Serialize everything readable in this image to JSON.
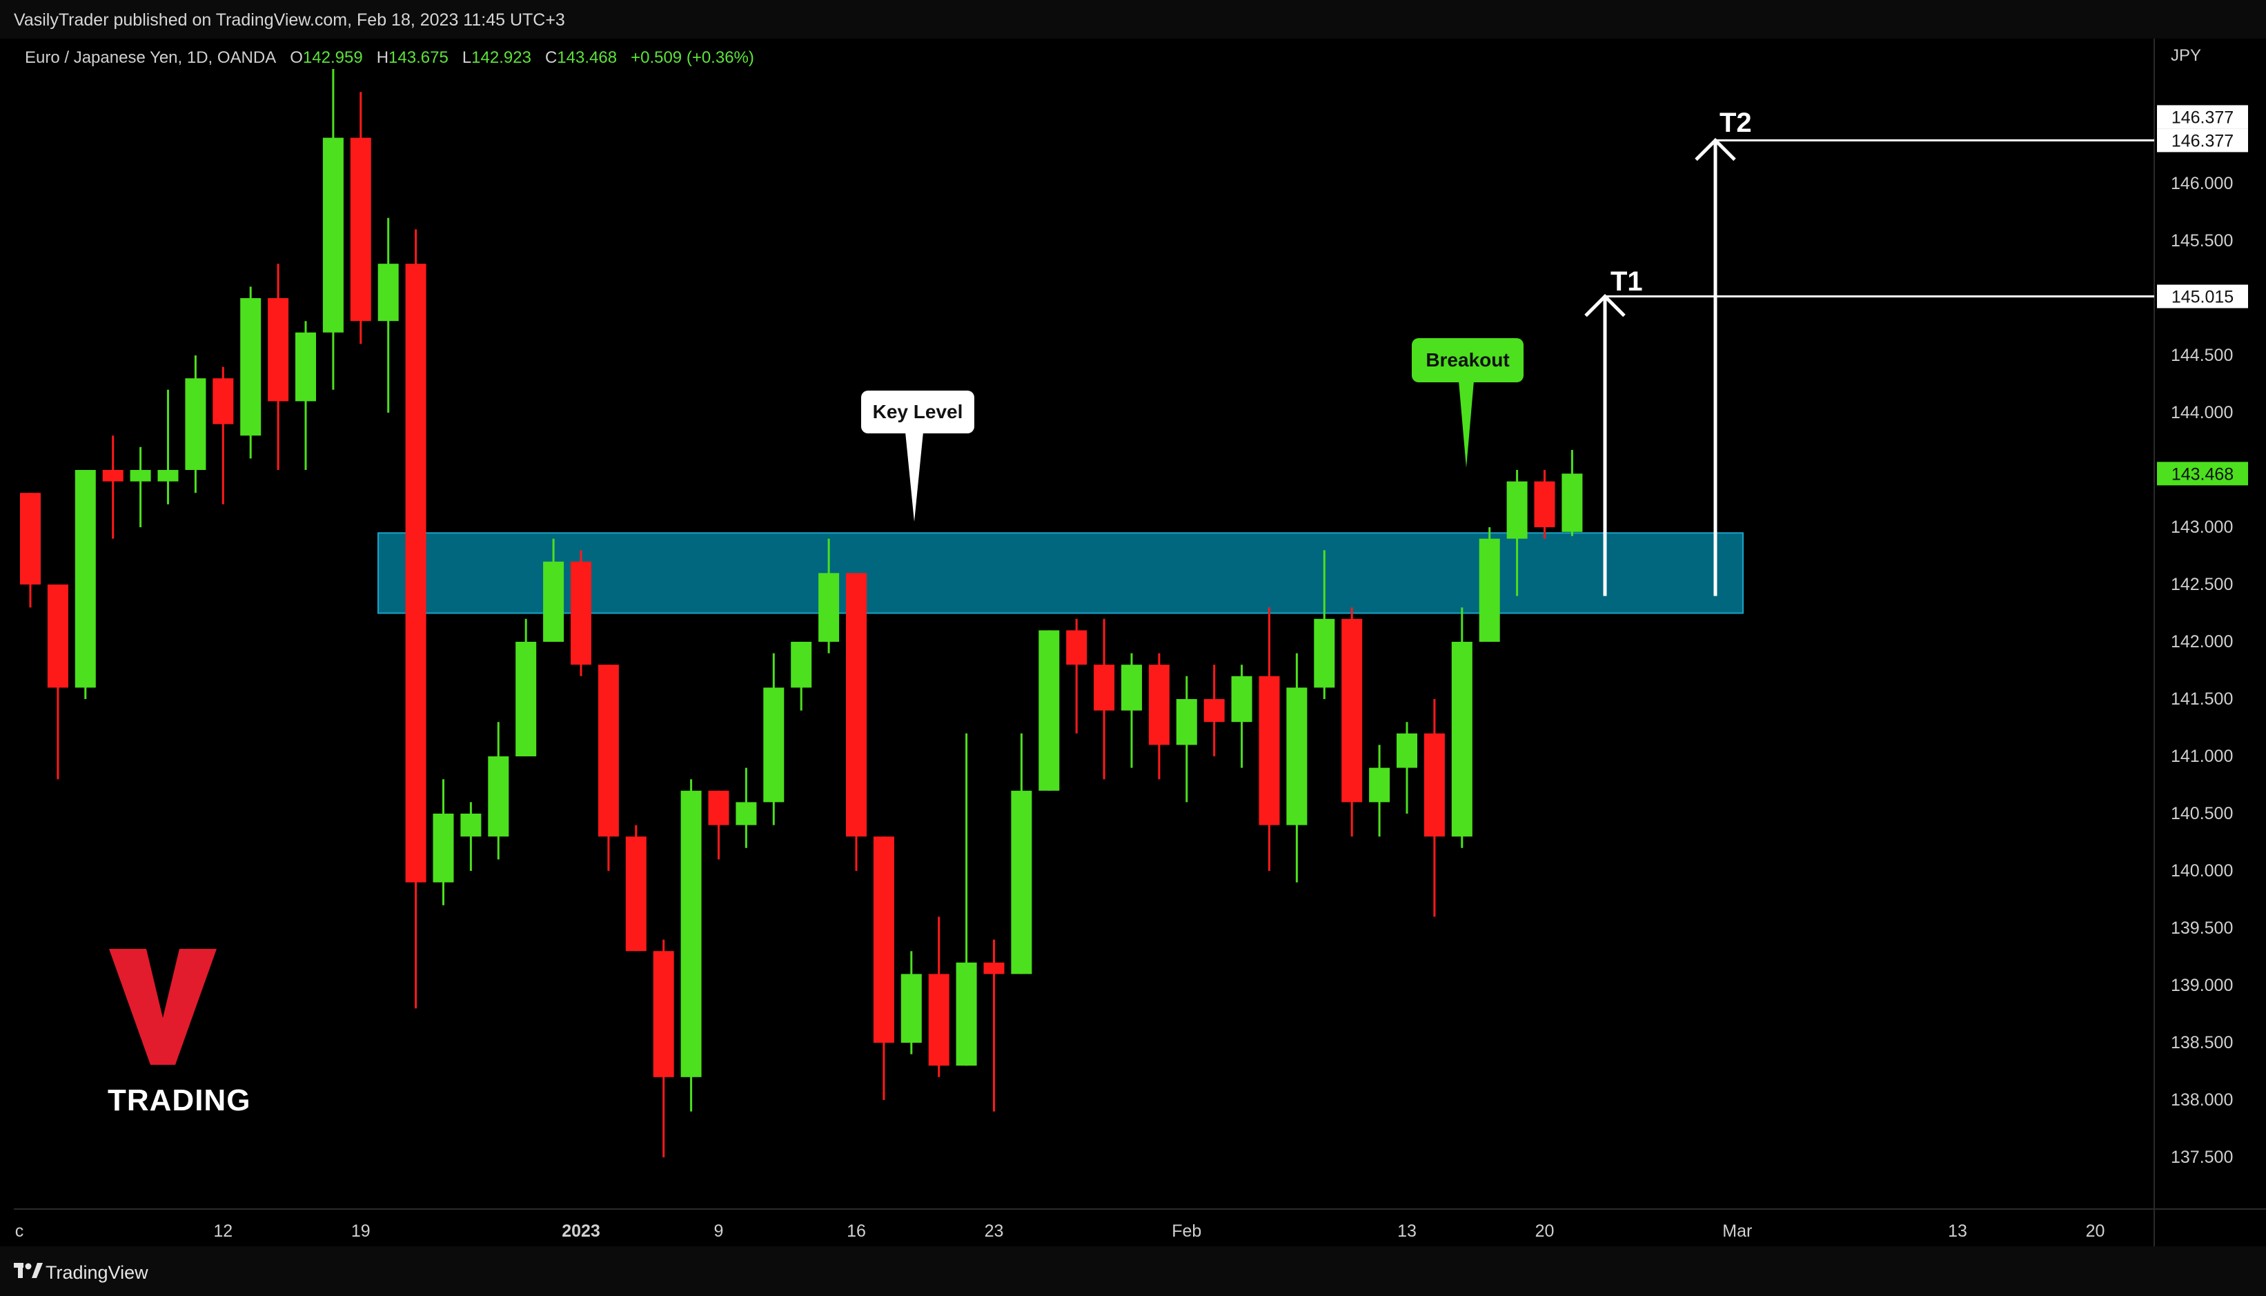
{
  "header": {
    "publisher_line": "VasilyTrader published on TradingView.com, Feb 18, 2023 11:45 UTC+3"
  },
  "symbol": {
    "name": "Euro / Japanese Yen, 1D, OANDA",
    "open_label": "O",
    "open": "142.959",
    "high_label": "H",
    "high": "143.675",
    "low_label": "L",
    "low": "142.923",
    "close_label": "C",
    "close": "143.468",
    "change": "+0.509 (+0.36%)"
  },
  "annotations": {
    "key_level": "Key Level",
    "breakout": "Breakout",
    "t1": "T1",
    "t2": "T2",
    "key_zone": [
      142.25,
      142.95
    ],
    "arrow_base": 142.4,
    "t1_price": 145.015,
    "t2_price": 146.377
  },
  "branding": {
    "logo_letter": "V",
    "logo_text": "TRADING",
    "footer": "TradingView"
  },
  "colors": {
    "up": "#4ce01e",
    "down": "#ff1a1a",
    "zone": "#00677f",
    "zone_border": "#1aa3c8",
    "background": "#000000",
    "logo_red": "#e21b2d"
  },
  "chart_data": {
    "type": "candlestick",
    "currency": "JPY",
    "ylim": [
      137.0,
      147.5
    ],
    "y_ticks": [
      "137.500",
      "138.000",
      "138.500",
      "139.000",
      "139.500",
      "140.000",
      "140.500",
      "141.000",
      "141.500",
      "142.000",
      "142.500",
      "143.000",
      "143.500",
      "144.000",
      "144.500",
      "145.000",
      "145.500",
      "146.000"
    ],
    "y_tick_values": [
      137.5,
      138.0,
      138.5,
      139.0,
      139.5,
      140.0,
      140.5,
      141.0,
      141.5,
      142.0,
      142.5,
      143.0,
      143.5,
      144.0,
      144.5,
      145.0,
      145.5,
      146.0
    ],
    "x_tick_labels": [
      "c",
      "12",
      "19",
      "2023",
      "9",
      "16",
      "23",
      "Feb",
      "13",
      "20",
      "Mar",
      "13",
      "20"
    ],
    "x_tick_index": [
      0,
      7,
      12,
      20,
      25,
      30,
      35,
      42,
      50,
      55,
      62,
      70,
      75
    ],
    "price_labels": [
      {
        "value": 146.377,
        "text": "146.377",
        "style": "white"
      },
      {
        "value": 146.377,
        "text": "146.377",
        "style": "white"
      },
      {
        "value": 145.015,
        "text": "145.015",
        "style": "white"
      },
      {
        "value": 143.468,
        "text": "143.468",
        "style": "green"
      }
    ],
    "candles": [
      {
        "i": 0,
        "o": 143.3,
        "h": 143.3,
        "l": 142.3,
        "c": 142.5
      },
      {
        "i": 1,
        "o": 142.5,
        "h": 142.5,
        "l": 140.8,
        "c": 141.6
      },
      {
        "i": 2,
        "o": 141.6,
        "h": 143.5,
        "l": 141.5,
        "c": 143.5
      },
      {
        "i": 3,
        "o": 143.5,
        "h": 143.8,
        "l": 142.9,
        "c": 143.4
      },
      {
        "i": 4,
        "o": 143.4,
        "h": 143.7,
        "l": 143.0,
        "c": 143.5
      },
      {
        "i": 5,
        "o": 143.4,
        "h": 144.2,
        "l": 143.2,
        "c": 143.5
      },
      {
        "i": 6,
        "o": 143.5,
        "h": 144.5,
        "l": 143.3,
        "c": 144.3
      },
      {
        "i": 7,
        "o": 144.3,
        "h": 144.4,
        "l": 143.2,
        "c": 143.9
      },
      {
        "i": 8,
        "o": 143.8,
        "h": 145.1,
        "l": 143.6,
        "c": 145.0
      },
      {
        "i": 9,
        "o": 145.0,
        "h": 145.3,
        "l": 143.5,
        "c": 144.1
      },
      {
        "i": 10,
        "o": 144.1,
        "h": 144.8,
        "l": 143.5,
        "c": 144.7
      },
      {
        "i": 11,
        "o": 144.7,
        "h": 147.0,
        "l": 144.2,
        "c": 146.4
      },
      {
        "i": 12,
        "o": 146.4,
        "h": 146.8,
        "l": 144.6,
        "c": 144.8
      },
      {
        "i": 13,
        "o": 144.8,
        "h": 145.7,
        "l": 144.0,
        "c": 145.3
      },
      {
        "i": 14,
        "o": 145.3,
        "h": 145.6,
        "l": 138.8,
        "c": 139.9
      },
      {
        "i": 15,
        "o": 139.9,
        "h": 140.8,
        "l": 139.7,
        "c": 140.5
      },
      {
        "i": 16,
        "o": 140.3,
        "h": 140.6,
        "l": 140.0,
        "c": 140.5
      },
      {
        "i": 17,
        "o": 140.3,
        "h": 141.3,
        "l": 140.1,
        "c": 141.0
      },
      {
        "i": 18,
        "o": 141.0,
        "h": 142.2,
        "l": 141.0,
        "c": 142.0
      },
      {
        "i": 19,
        "o": 142.0,
        "h": 142.9,
        "l": 142.0,
        "c": 142.7
      },
      {
        "i": 20,
        "o": 142.7,
        "h": 142.8,
        "l": 141.7,
        "c": 141.8
      },
      {
        "i": 21,
        "o": 141.8,
        "h": 141.8,
        "l": 140.0,
        "c": 140.3
      },
      {
        "i": 22,
        "o": 140.3,
        "h": 140.4,
        "l": 139.3,
        "c": 139.3
      },
      {
        "i": 23,
        "o": 139.3,
        "h": 139.4,
        "l": 137.5,
        "c": 138.2
      },
      {
        "i": 24,
        "o": 138.2,
        "h": 140.8,
        "l": 137.9,
        "c": 140.7
      },
      {
        "i": 25,
        "o": 140.7,
        "h": 140.7,
        "l": 140.1,
        "c": 140.4
      },
      {
        "i": 26,
        "o": 140.4,
        "h": 140.9,
        "l": 140.2,
        "c": 140.6
      },
      {
        "i": 27,
        "o": 140.6,
        "h": 141.9,
        "l": 140.4,
        "c": 141.6
      },
      {
        "i": 28,
        "o": 141.6,
        "h": 142.0,
        "l": 141.4,
        "c": 142.0
      },
      {
        "i": 29,
        "o": 142.0,
        "h": 142.9,
        "l": 141.9,
        "c": 142.6
      },
      {
        "i": 30,
        "o": 142.6,
        "h": 142.5,
        "l": 140.0,
        "c": 140.3
      },
      {
        "i": 31,
        "o": 140.3,
        "h": 140.3,
        "l": 138.0,
        "c": 138.5
      },
      {
        "i": 32,
        "o": 138.5,
        "h": 139.3,
        "l": 138.4,
        "c": 139.1
      },
      {
        "i": 33,
        "o": 139.1,
        "h": 139.6,
        "l": 138.2,
        "c": 138.3
      },
      {
        "i": 34,
        "o": 138.3,
        "h": 141.2,
        "l": 138.3,
        "c": 139.2
      },
      {
        "i": 35,
        "o": 139.2,
        "h": 139.4,
        "l": 137.9,
        "c": 139.1
      },
      {
        "i": 36,
        "o": 139.1,
        "h": 141.2,
        "l": 139.1,
        "c": 140.7
      },
      {
        "i": 37,
        "o": 140.7,
        "h": 142.1,
        "l": 140.7,
        "c": 142.1
      },
      {
        "i": 38,
        "o": 142.1,
        "h": 142.2,
        "l": 141.2,
        "c": 141.8
      },
      {
        "i": 39,
        "o": 141.8,
        "h": 142.2,
        "l": 140.8,
        "c": 141.4
      },
      {
        "i": 40,
        "o": 141.4,
        "h": 141.9,
        "l": 140.9,
        "c": 141.8
      },
      {
        "i": 41,
        "o": 141.8,
        "h": 141.9,
        "l": 140.8,
        "c": 141.1
      },
      {
        "i": 42,
        "o": 141.1,
        "h": 141.7,
        "l": 140.6,
        "c": 141.5
      },
      {
        "i": 43,
        "o": 141.5,
        "h": 141.8,
        "l": 141.0,
        "c": 141.3
      },
      {
        "i": 44,
        "o": 141.3,
        "h": 141.8,
        "l": 140.9,
        "c": 141.7
      },
      {
        "i": 45,
        "o": 141.7,
        "h": 142.3,
        "l": 140.0,
        "c": 140.4
      },
      {
        "i": 46,
        "o": 140.4,
        "h": 141.9,
        "l": 139.9,
        "c": 141.6
      },
      {
        "i": 47,
        "o": 141.6,
        "h": 142.8,
        "l": 141.5,
        "c": 142.2
      },
      {
        "i": 48,
        "o": 142.2,
        "h": 142.3,
        "l": 140.3,
        "c": 140.6
      },
      {
        "i": 49,
        "o": 140.6,
        "h": 141.1,
        "l": 140.3,
        "c": 140.9
      },
      {
        "i": 50,
        "o": 140.9,
        "h": 141.3,
        "l": 140.5,
        "c": 141.2
      },
      {
        "i": 51,
        "o": 141.2,
        "h": 141.5,
        "l": 139.6,
        "c": 140.3
      },
      {
        "i": 52,
        "o": 140.3,
        "h": 142.3,
        "l": 140.2,
        "c": 142.0
      },
      {
        "i": 53,
        "o": 142.0,
        "h": 143.0,
        "l": 142.0,
        "c": 142.9
      },
      {
        "i": 54,
        "o": 142.9,
        "h": 143.5,
        "l": 142.4,
        "c": 143.4
      },
      {
        "i": 55,
        "o": 143.4,
        "h": 143.5,
        "l": 142.9,
        "c": 143.0
      },
      {
        "i": 56,
        "o": 142.959,
        "h": 143.675,
        "l": 142.923,
        "c": 143.468
      }
    ]
  }
}
